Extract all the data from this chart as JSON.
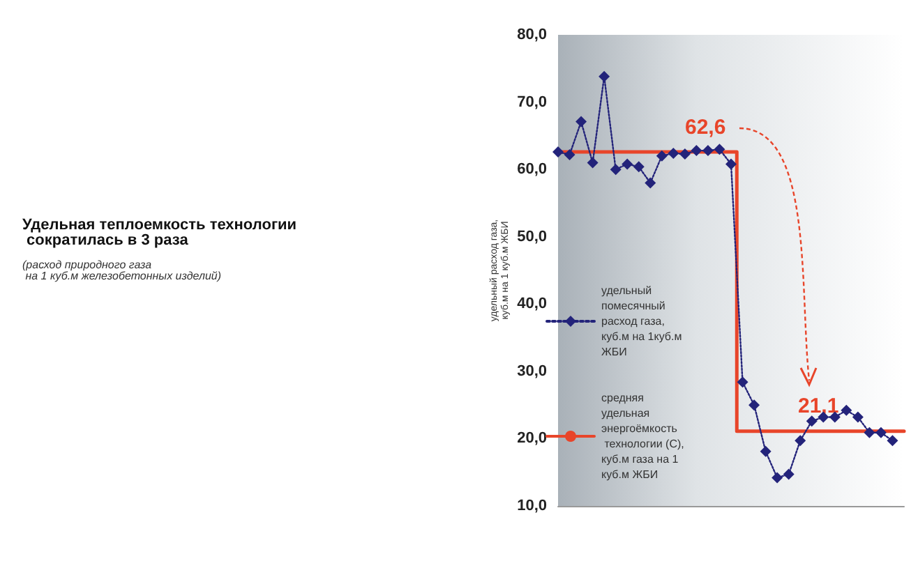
{
  "chart_data": {
    "type": "line",
    "title": "Удельная теплоемкость технологии\n сократилась в 3 раза",
    "subtitle": "(расход природного газа\n на 1 куб.м железобетонных изделий)",
    "ylabel": "удельный расход газа,\nкуб.м на 1 куб.м ЖБИ",
    "categories": [
      null,
      null,
      null,
      null,
      null,
      null,
      null,
      null,
      null,
      null,
      null,
      null,
      null,
      null,
      null,
      null,
      null,
      null,
      null,
      null,
      null,
      null,
      null,
      null,
      null,
      null,
      null,
      null,
      null,
      null,
      null
    ],
    "series": [
      {
        "name": "удельный помесячный расход газа, куб.м на 1куб.м ЖБИ",
        "color": "#23237a",
        "marker": "diamond",
        "line_style": "dotted",
        "values": [
          62.6,
          62.2,
          67.1,
          61.0,
          73.8,
          60.0,
          60.8,
          60.4,
          58.0,
          62.0,
          62.4,
          62.3,
          62.8,
          62.8,
          63.0,
          60.8,
          28.4,
          25.0,
          18.1,
          14.2,
          14.7,
          19.7,
          22.6,
          23.2,
          23.2,
          24.2,
          23.2,
          20.9,
          20.9,
          19.7,
          null
        ]
      },
      {
        "name": "средняя удельная энергоёмкость технологии (С), куб.м газа на 1 куб.м ЖБИ",
        "type": "step",
        "color": "#e8452a",
        "marker": "none",
        "line_style": "solid",
        "values": [
          62.6,
          62.6,
          62.6,
          62.6,
          62.6,
          62.6,
          62.6,
          62.6,
          62.6,
          62.6,
          62.6,
          62.6,
          62.6,
          62.6,
          62.6,
          62.6,
          21.1,
          21.1,
          21.1,
          21.1,
          21.1,
          21.1,
          21.1,
          21.1,
          21.1,
          21.1,
          21.1,
          21.1,
          21.1,
          21.1,
          21.1
        ]
      }
    ],
    "annotations": [
      "62,6",
      "21,1"
    ],
    "ylim": [
      10,
      80
    ],
    "yticks": [
      {
        "value": 10,
        "label": "10,0"
      },
      {
        "value": 20,
        "label": "20,0"
      },
      {
        "value": 30,
        "label": "30,0"
      },
      {
        "value": 40,
        "label": "40,0"
      },
      {
        "value": 50,
        "label": "50,0"
      },
      {
        "value": 60,
        "label": "60,0"
      },
      {
        "value": 70,
        "label": "70,0"
      },
      {
        "value": 80,
        "label": "80,0"
      }
    ],
    "tick_labels": "y",
    "legend": "left",
    "grid": false
  }
}
